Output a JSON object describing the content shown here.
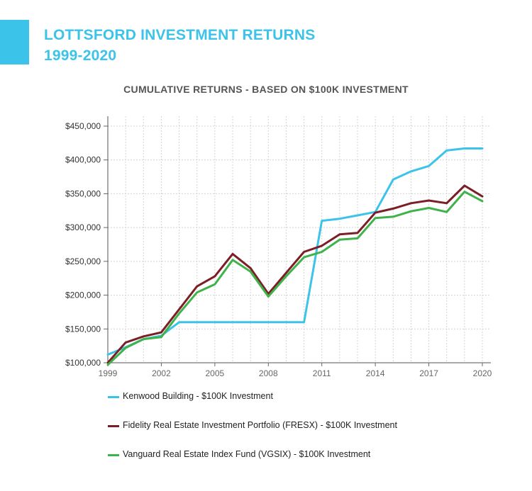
{
  "header": {
    "title_line1": "LOTTSFORD INVESTMENT RETURNS",
    "title_line2": "1999-2020"
  },
  "colors": {
    "accent": "#3cc3ea",
    "kenwood": "#3cc3ea",
    "fidelity": "#7b1f26",
    "vanguard": "#3fb24a"
  },
  "chart_data": {
    "type": "line",
    "title": "CUMULATIVE RETURNS - BASED ON $100K INVESTMENT",
    "xlabel": "",
    "ylabel": "",
    "x": [
      1999,
      2000,
      2001,
      2002,
      2003,
      2004,
      2005,
      2006,
      2007,
      2008,
      2009,
      2010,
      2011,
      2012,
      2013,
      2014,
      2015,
      2016,
      2017,
      2018,
      2019,
      2020
    ],
    "x_ticks": [
      "1999",
      "2002",
      "2005",
      "2008",
      "2011",
      "2014",
      "2017",
      "2020"
    ],
    "y_ticks": [
      "$100,000",
      "$150,000",
      "$200,000",
      "$250,000",
      "$300,000",
      "$350,000",
      "$400,000",
      "$450,000"
    ],
    "ylim": [
      100000,
      450000
    ],
    "grid": true,
    "legend_position": "bottom",
    "series": [
      {
        "name": "Kenwood Building - $100K Investment",
        "color_key": "kenwood",
        "values": [
          112000,
          123000,
          135000,
          140000,
          160000,
          160000,
          160000,
          160000,
          160000,
          160000,
          160000,
          160000,
          310000,
          313000,
          318000,
          323000,
          371000,
          383000,
          391000,
          414000,
          417000,
          417000
        ]
      },
      {
        "name": "Fidelity Real Estate Investment Portfolio (FRESX) - $100K Investment",
        "color_key": "fidelity",
        "values": [
          100000,
          130000,
          139000,
          145000,
          179000,
          213000,
          228000,
          261000,
          240000,
          202000,
          233000,
          264000,
          273000,
          290000,
          292000,
          322000,
          328000,
          336000,
          340000,
          336000,
          362000,
          346000
        ]
      },
      {
        "name": "Vanguard Real Estate Index Fund (VGSIX) - $100K Investment",
        "color_key": "vanguard",
        "values": [
          97000,
          122000,
          135000,
          138000,
          173000,
          204000,
          216000,
          252000,
          235000,
          198000,
          228000,
          256000,
          264000,
          282000,
          284000,
          314000,
          316000,
          324000,
          329000,
          323000,
          353000,
          339000
        ]
      }
    ]
  }
}
